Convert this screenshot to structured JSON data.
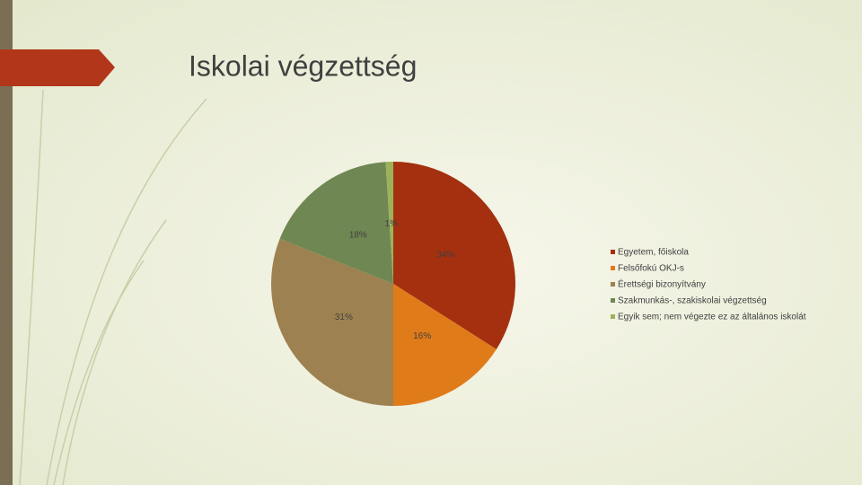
{
  "chart_data": {
    "type": "pie",
    "title": "Iskolai végzettség",
    "categories": [
      "Egyetem, főiskola",
      "Felsőfokú OKJ-s",
      "Érettségi bizonyítvány",
      "Szakmunkás-, szakiskolai végzettség",
      "Egyik sem; nem végezte ez az általános iskolát"
    ],
    "values": [
      34,
      16,
      31,
      18,
      1
    ],
    "value_labels": [
      "34%",
      "16%",
      "31%",
      "18%",
      "1%"
    ],
    "colors": [
      "#a4300f",
      "#e07b1a",
      "#9e8150",
      "#6f8752",
      "#9cb15a"
    ],
    "legend": "right"
  }
}
